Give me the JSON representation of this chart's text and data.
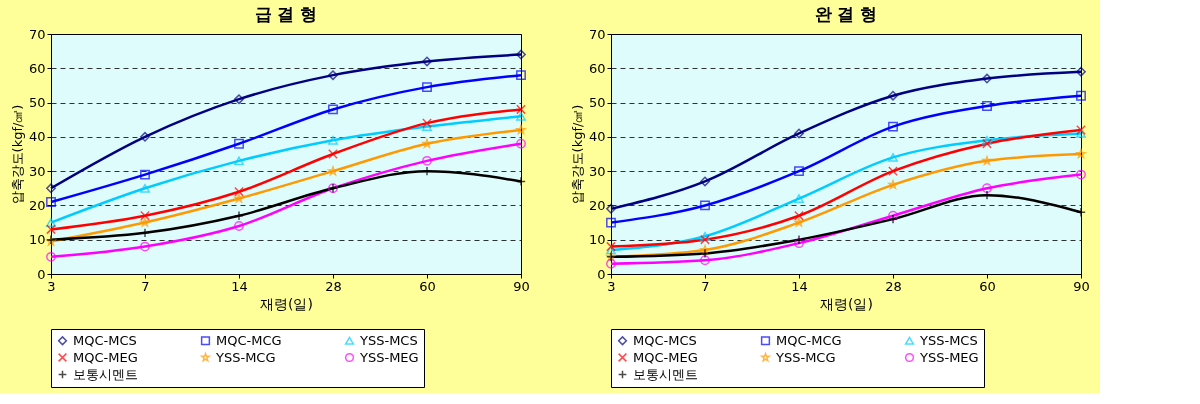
{
  "chart_data": [
    {
      "type": "line",
      "title": "급 결 형",
      "xlabel": "재령(일)",
      "ylabel": "압축강도(kgf/㎠)",
      "categories": [
        "3",
        "7",
        "14",
        "28",
        "60",
        "90"
      ],
      "ylim": [
        0,
        70
      ],
      "yticks": [
        0,
        10,
        20,
        30,
        40,
        50,
        60,
        70
      ],
      "grid": "y",
      "legend": "bottom",
      "line_style": "solid",
      "series": [
        {
          "name": "MQC-MCS",
          "color": "#000080",
          "marker": "diamond",
          "values": [
            25,
            40,
            51,
            58,
            62,
            64
          ]
        },
        {
          "name": "MQC-MCG",
          "color": "#0000ff",
          "marker": "square",
          "values": [
            21,
            29,
            38,
            48,
            54.5,
            58
          ]
        },
        {
          "name": "YSS-MCS",
          "color": "#00ccff",
          "marker": "triangle",
          "values": [
            15,
            25,
            33,
            39,
            43,
            46
          ]
        },
        {
          "name": "MQC-MEG",
          "color": "#ff0000",
          "marker": "cross",
          "values": [
            13,
            17,
            24,
            35,
            44,
            48
          ]
        },
        {
          "name": "YSS-MCG",
          "color": "#ff9900",
          "marker": "star",
          "values": [
            9.5,
            15,
            22,
            30,
            38,
            42
          ]
        },
        {
          "name": "YSS-MEG",
          "color": "#ff00ff",
          "marker": "circle",
          "values": [
            5,
            8,
            14,
            25,
            33,
            38
          ]
        },
        {
          "name": "보통시멘트",
          "color": "#000000",
          "marker": "plus",
          "values": [
            10,
            12,
            17,
            25,
            30,
            27
          ]
        }
      ]
    },
    {
      "type": "line",
      "title": "완 결 형",
      "xlabel": "재령(일)",
      "ylabel": "압축강도(kgf/㎠)",
      "categories": [
        "3",
        "7",
        "14",
        "28",
        "60",
        "90"
      ],
      "ylim": [
        0,
        70
      ],
      "yticks": [
        0,
        10,
        20,
        30,
        40,
        50,
        60,
        70
      ],
      "grid": "y",
      "legend": "bottom",
      "line_style": "solid",
      "series": [
        {
          "name": "MQC-MCS",
          "color": "#000080",
          "marker": "diamond",
          "values": [
            19,
            27,
            41,
            52,
            57,
            59
          ]
        },
        {
          "name": "MQC-MCG",
          "color": "#0000ff",
          "marker": "square",
          "values": [
            15,
            20,
            30,
            43,
            49,
            52
          ]
        },
        {
          "name": "YSS-MCS",
          "color": "#00ccff",
          "marker": "triangle",
          "values": [
            7,
            11,
            22,
            34,
            39,
            41
          ]
        },
        {
          "name": "MQC-MEG",
          "color": "#ff0000",
          "marker": "cross",
          "values": [
            8,
            10,
            17,
            30,
            38,
            42
          ]
        },
        {
          "name": "YSS-MCG",
          "color": "#ff9900",
          "marker": "star",
          "values": [
            5,
            7,
            15,
            26,
            33,
            35
          ]
        },
        {
          "name": "YSS-MEG",
          "color": "#ff00ff",
          "marker": "circle",
          "values": [
            3,
            4,
            9,
            17,
            25,
            29
          ]
        },
        {
          "name": "보통시멘트",
          "color": "#000000",
          "marker": "plus",
          "values": [
            5,
            6,
            10,
            16,
            23,
            18
          ]
        }
      ]
    }
  ]
}
